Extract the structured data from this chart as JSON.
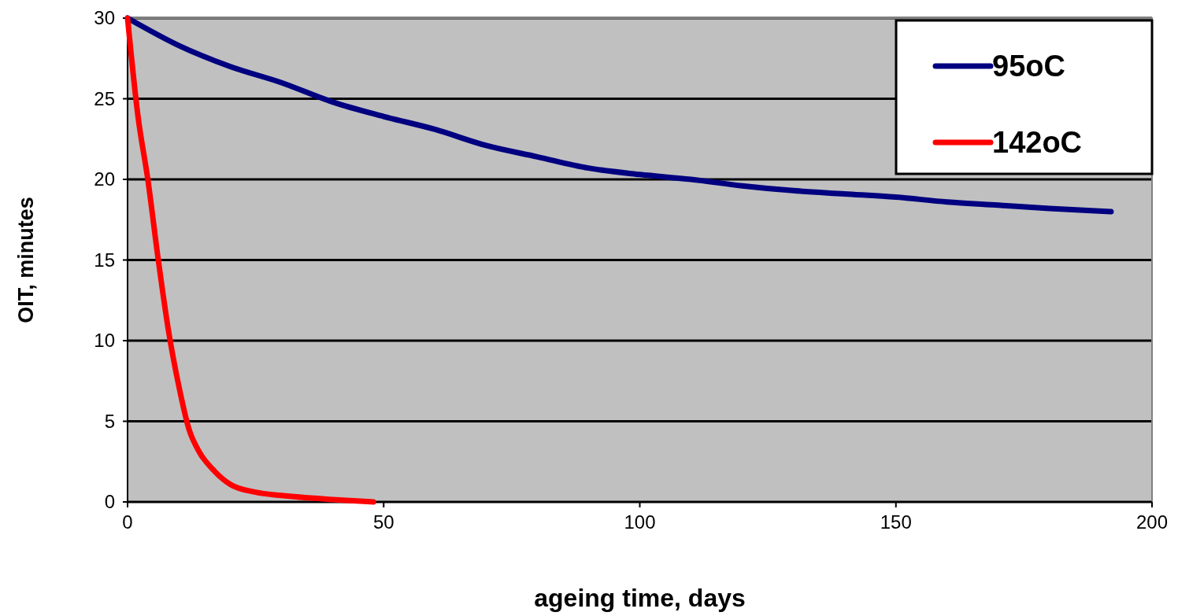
{
  "chart_data": {
    "type": "line",
    "xlabel": "ageing time, days",
    "ylabel": "OIT, minutes",
    "xlim": [
      0,
      200
    ],
    "xticks": [
      0,
      50,
      100,
      150,
      200
    ],
    "ylim": [
      0,
      30
    ],
    "yticks": [
      0,
      5,
      10,
      15,
      20,
      25,
      30
    ],
    "grid": "y",
    "legend": "top right",
    "marker": "none",
    "line_style": "solid",
    "series": [
      {
        "name": "95oC",
        "color": "#000080",
        "x": [
          0,
          10,
          20,
          30,
          40,
          50,
          60,
          70,
          80,
          90,
          100,
          110,
          120,
          130,
          140,
          150,
          160,
          170,
          180,
          192
        ],
        "values": [
          30,
          28.3,
          27,
          26,
          24.8,
          23.9,
          23.1,
          22.1,
          21.4,
          20.7,
          20.3,
          20,
          19.6,
          19.3,
          19.1,
          18.9,
          18.6,
          18.4,
          18.2,
          18
        ]
      },
      {
        "name": "142oC",
        "color": "#ff0000",
        "x": [
          0,
          2,
          4,
          6,
          8,
          10,
          12,
          14,
          17,
          20,
          25,
          30,
          40,
          48
        ],
        "values": [
          30,
          24,
          19.9,
          15,
          10.6,
          7.2,
          4.5,
          3.1,
          1.9,
          1.1,
          0.6,
          0.4,
          0.15,
          0
        ]
      }
    ]
  }
}
